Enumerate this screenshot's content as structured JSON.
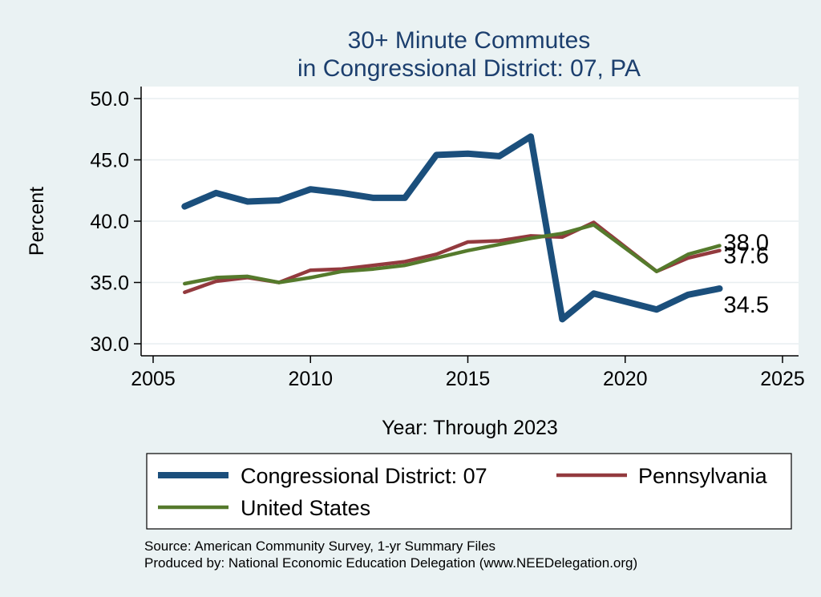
{
  "chart_data": {
    "type": "line",
    "title": [
      "30+ Minute Commutes",
      "in Congressional District:  07, PA"
    ],
    "xlabel": "Year: Through 2023",
    "ylabel": "Percent",
    "xlim": [
      2005,
      2025
    ],
    "ylim": [
      30,
      50
    ],
    "xticks": [
      2005,
      2010,
      2015,
      2020,
      2025
    ],
    "yticks": [
      30,
      35,
      40,
      45,
      50
    ],
    "ytick_labels": [
      "30.0",
      "35.0",
      "40.0",
      "45.0",
      "50.0"
    ],
    "grid": "horizontal",
    "x": [
      2006,
      2007,
      2008,
      2009,
      2010,
      2011,
      2012,
      2013,
      2014,
      2015,
      2016,
      2017,
      2018,
      2019,
      2021,
      2022,
      2023
    ],
    "series": [
      {
        "name": "Congressional District:  07",
        "color": "#1b4f7c",
        "values": [
          41.2,
          42.3,
          41.6,
          41.7,
          42.6,
          42.3,
          41.9,
          41.9,
          45.4,
          45.5,
          45.3,
          46.9,
          32.0,
          34.1,
          32.8,
          34.0,
          34.5
        ],
        "end_label": "34.5"
      },
      {
        "name": "Pennsylvania",
        "color": "#933a3e",
        "values": [
          34.2,
          35.1,
          35.4,
          35.0,
          36.0,
          36.1,
          36.4,
          36.7,
          37.3,
          38.3,
          38.4,
          38.8,
          38.7,
          39.9,
          35.9,
          37.0,
          37.6
        ],
        "end_label": "37.6"
      },
      {
        "name": "United States",
        "color": "#557a2c",
        "values": [
          34.9,
          35.4,
          35.5,
          35.0,
          35.4,
          35.9,
          36.1,
          36.4,
          37.0,
          37.6,
          38.1,
          38.6,
          39.0,
          39.7,
          35.9,
          37.3,
          38.0
        ],
        "end_label": "38.0"
      }
    ],
    "legend_position": "bottom",
    "source": "Source: American Community Survey, 1-yr Summary Files",
    "producer": "Produced by: National Economic Education Delegation (www.NEEDelegation.org)"
  }
}
